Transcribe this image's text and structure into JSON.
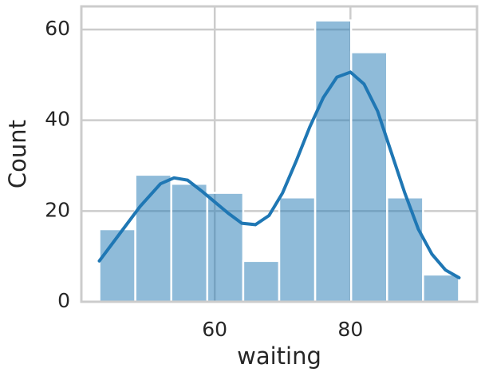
{
  "chart_data": {
    "type": "histogram",
    "x_label": "waiting",
    "y_label": "Count",
    "bins": [
      43,
      48.3,
      53.6,
      58.9,
      64.2,
      69.5,
      74.8,
      80.1,
      85.4,
      90.7,
      96
    ],
    "values": [
      16,
      28,
      26,
      24,
      9,
      23,
      62,
      55,
      23,
      6
    ],
    "color": "#1f77b4",
    "kde": {
      "color": "#1f77b4",
      "x": [
        43,
        46,
        49,
        52,
        54,
        56,
        58,
        60,
        62,
        64,
        66,
        68,
        70,
        72,
        74,
        76,
        78,
        80,
        82,
        84,
        86,
        88,
        90,
        92,
        94,
        96
      ],
      "values": [
        9,
        15,
        21,
        26,
        27.3,
        26.8,
        24.5,
        22,
        19.5,
        17.3,
        17,
        19,
        24,
        31,
        38.5,
        45,
        49.5,
        50.6,
        48,
        42,
        33,
        24,
        16,
        10.5,
        7,
        5.3
      ]
    },
    "xlim": [
      40.35,
      98.65
    ],
    "ylim": [
      0,
      65.1
    ],
    "xticks": [
      60,
      80
    ],
    "yticks": [
      0,
      20,
      40,
      60
    ],
    "grid": true
  }
}
